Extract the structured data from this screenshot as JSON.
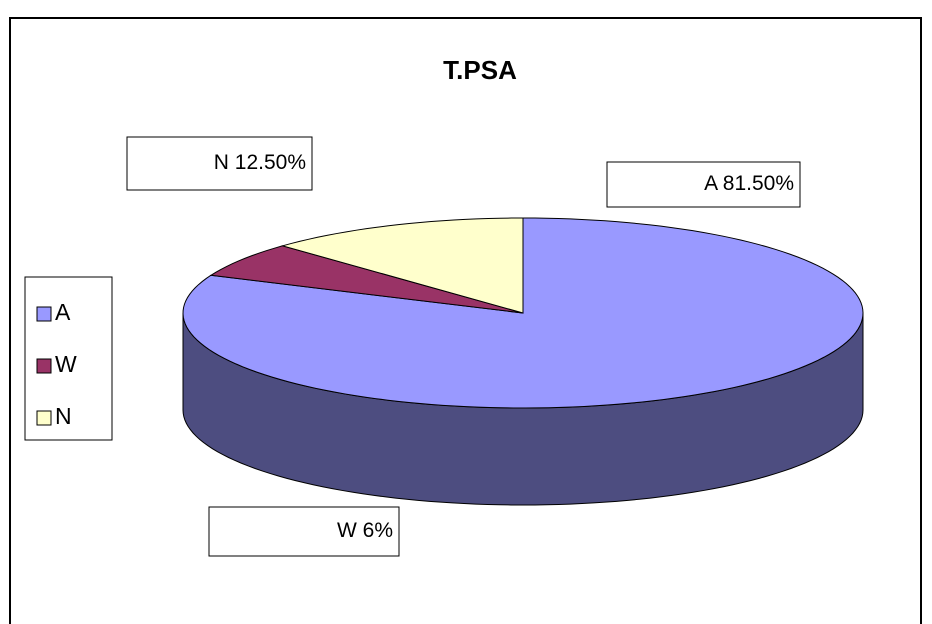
{
  "chart_data": {
    "type": "pie3d",
    "title": "T.PSA",
    "categories": [
      "A",
      "W",
      "N"
    ],
    "values": [
      81.5,
      6,
      12.5
    ],
    "value_labels": [
      "A 81.50%",
      "W 6%",
      "N 12.50%"
    ],
    "colors": [
      "#9999ff",
      "#993366",
      "#ffffcc"
    ],
    "legend": "left"
  }
}
